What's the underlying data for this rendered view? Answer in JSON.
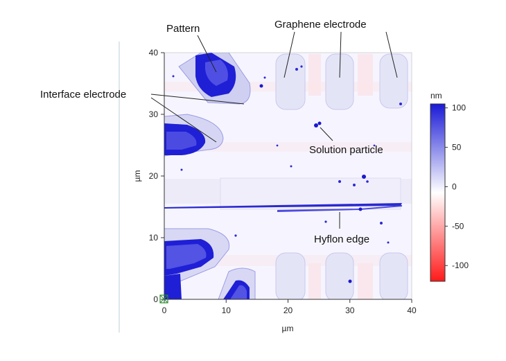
{
  "chart_data": {
    "type": "heatmap",
    "title": "",
    "xlabel": "µm",
    "ylabel": "µm",
    "xlim": [
      0,
      40
    ],
    "ylim": [
      0,
      40
    ],
    "x_ticks": [
      "0",
      "10",
      "20",
      "30",
      "40"
    ],
    "y_ticks": [
      "0",
      "10",
      "20",
      "30",
      "40"
    ],
    "colorbar": {
      "unit": "nm",
      "range": [
        -120,
        105
      ],
      "ticks": [
        "100",
        "50",
        "0",
        "-50",
        "-100"
      ],
      "colors": [
        "#1a1ad6",
        "#ffffff",
        "#ff1a1a"
      ]
    },
    "annotations": [
      "Pattern",
      "Graphene electrode",
      "Interface electrode",
      "Solution particle",
      "Hyflon edge"
    ]
  }
}
